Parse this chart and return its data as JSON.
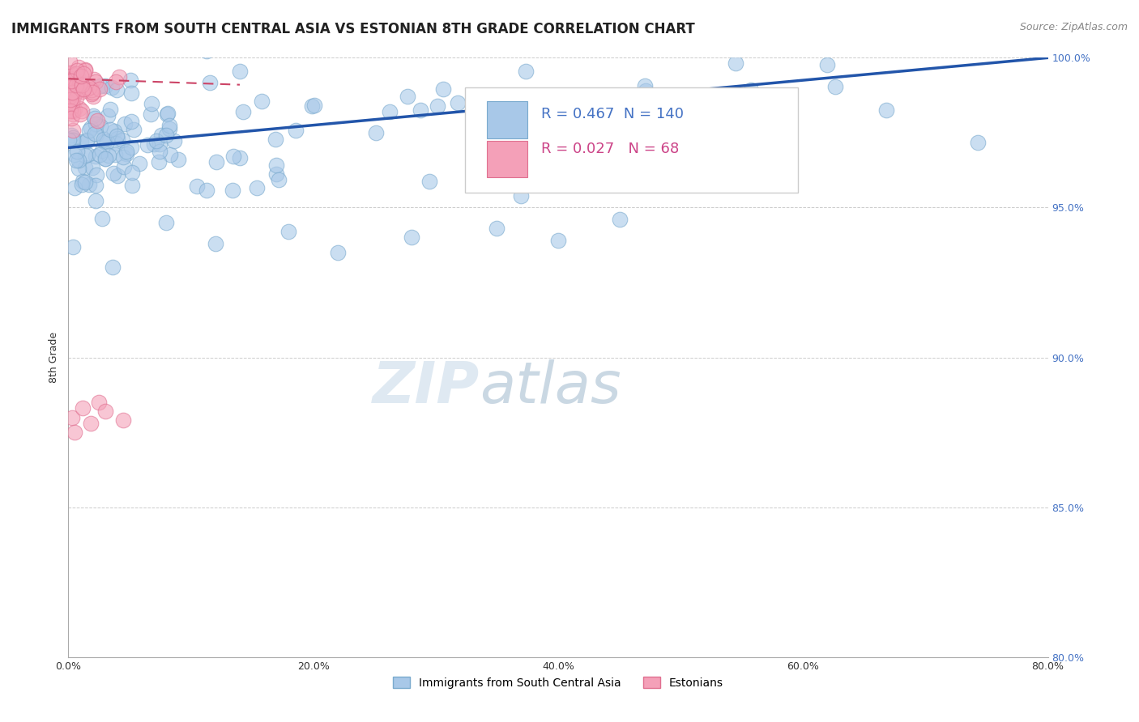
{
  "title": "IMMIGRANTS FROM SOUTH CENTRAL ASIA VS ESTONIAN 8TH GRADE CORRELATION CHART",
  "source": "Source: ZipAtlas.com",
  "ylabel": "8th Grade",
  "xlim": [
    0.0,
    80.0
  ],
  "ylim": [
    80.0,
    100.0
  ],
  "xticks": [
    0.0,
    20.0,
    40.0,
    60.0,
    80.0
  ],
  "yticks": [
    80.0,
    85.0,
    90.0,
    95.0,
    100.0
  ],
  "legend_entries": [
    "Immigrants from South Central Asia",
    "Estonians"
  ],
  "blue_R": 0.467,
  "blue_N": 140,
  "pink_R": 0.027,
  "pink_N": 68,
  "blue_color": "#a8c8e8",
  "pink_color": "#f4a0b8",
  "blue_edge_color": "#7aaace",
  "pink_edge_color": "#e07090",
  "blue_line_color": "#2255aa",
  "pink_line_color": "#cc4466",
  "watermark_zip_color": "#c8d8e8",
  "watermark_atlas_color": "#a0b8cc",
  "title_fontsize": 12,
  "label_fontsize": 9,
  "tick_fontsize": 9,
  "ytick_color": "#4472c4",
  "xtick_color": "#333333"
}
